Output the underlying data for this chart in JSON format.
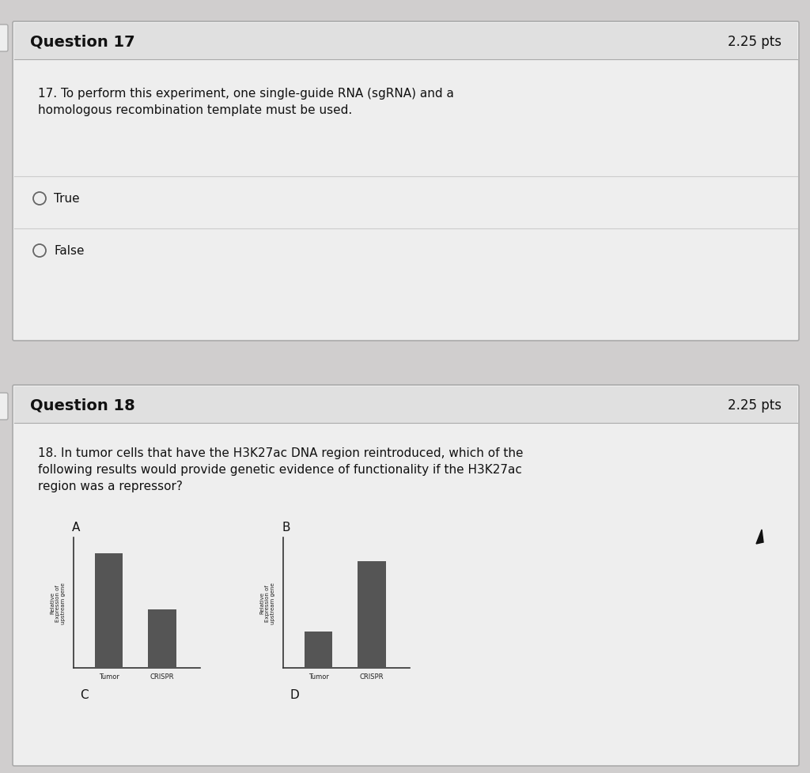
{
  "bg_color": "#d0cece",
  "card_bg": "#eeeeee",
  "card_border": "#aaaaaa",
  "header_bg": "#e0e0e0",
  "sep_color": "#cccccc",
  "q17_header": "Question 17",
  "q17_pts": "2.25 pts",
  "q17_body": "17. To perform this experiment, one single-guide RNA (sgRNA) and a\nhomologous recombination template must be used.",
  "q17_options": [
    "True",
    "False"
  ],
  "q18_header": "Question 18",
  "q18_pts": "2.25 pts",
  "q18_body": "18. In tumor cells that have the H3K27ac DNA region reintroduced, which of the\nfollowing results would provide genetic evidence of functionality if the H3K27ac\nregion was a repressor?",
  "chart_A_label": "A",
  "chart_B_label": "B",
  "chart_C_label": "C",
  "chart_D_label": "D",
  "chart_A_bars": [
    0.88,
    0.45
  ],
  "chart_B_bars": [
    0.28,
    0.82
  ],
  "chart_xlabel": [
    "Tumor",
    "CRISPR"
  ],
  "chart_ylabel": "Relative\nExpression of\nupstream gene",
  "bar_color": "#555555",
  "text_color": "#111111",
  "header_text_color": "#111111",
  "font_size_header": 14,
  "font_size_body": 11,
  "font_size_option": 11,
  "font_size_pts": 12,
  "circle_color": "#666666",
  "left_tab_color": "#555555"
}
